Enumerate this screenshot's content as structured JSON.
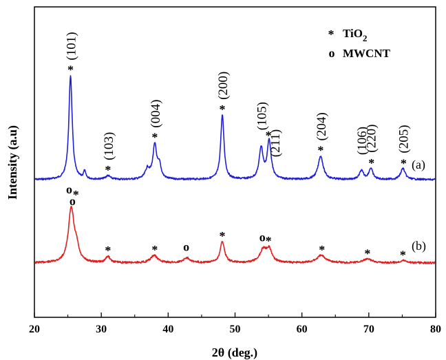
{
  "chart_data": {
    "type": "line",
    "title": "",
    "xlabel": "2θ (deg.)",
    "ylabel": "Intensity (a.u)",
    "xlim": [
      20,
      80
    ],
    "xticks": [
      20,
      30,
      40,
      50,
      60,
      70,
      80
    ],
    "y_ticks_shown": false,
    "grid": false,
    "legend": {
      "placement": "top-right",
      "entries": [
        {
          "symbol": "*",
          "label": "TiO",
          "subscript": "2"
        },
        {
          "symbol": "o",
          "label": "MWCNT"
        }
      ]
    },
    "series": [
      {
        "label": "(a)",
        "color": "#1f1fd6",
        "peaks": [
          {
            "two_theta": 25.4,
            "height": 0.84,
            "width": 0.3
          },
          {
            "two_theta": 27.5,
            "height": 0.06,
            "width": 0.2
          },
          {
            "two_theta": 31.0,
            "height": 0.03,
            "width": 0.4
          },
          {
            "two_theta": 36.9,
            "height": 0.08,
            "width": 0.4
          },
          {
            "two_theta": 38.0,
            "height": 0.27,
            "width": 0.35
          },
          {
            "two_theta": 38.7,
            "height": 0.1,
            "width": 0.3
          },
          {
            "two_theta": 48.1,
            "height": 0.52,
            "width": 0.3
          },
          {
            "two_theta": 53.9,
            "height": 0.25,
            "width": 0.35
          },
          {
            "two_theta": 55.1,
            "height": 0.31,
            "width": 0.35
          },
          {
            "two_theta": 62.8,
            "height": 0.19,
            "width": 0.45
          },
          {
            "two_theta": 68.9,
            "height": 0.07,
            "width": 0.35
          },
          {
            "two_theta": 70.3,
            "height": 0.09,
            "width": 0.35
          },
          {
            "two_theta": 75.1,
            "height": 0.09,
            "width": 0.4
          }
        ]
      },
      {
        "label": "(b)",
        "color": "#e02020",
        "peaks": [
          {
            "two_theta": 25.5,
            "height": 0.44,
            "width": 0.5
          },
          {
            "two_theta": 26.3,
            "height": 0.1,
            "width": 0.4
          },
          {
            "two_theta": 31.0,
            "height": 0.05,
            "width": 0.4
          },
          {
            "two_theta": 37.9,
            "height": 0.06,
            "width": 0.6
          },
          {
            "two_theta": 42.8,
            "height": 0.04,
            "width": 0.6
          },
          {
            "two_theta": 48.1,
            "height": 0.17,
            "width": 0.4
          },
          {
            "two_theta": 54.2,
            "height": 0.1,
            "width": 0.6
          },
          {
            "two_theta": 55.1,
            "height": 0.1,
            "width": 0.5
          },
          {
            "two_theta": 62.9,
            "height": 0.06,
            "width": 0.8
          },
          {
            "two_theta": 69.8,
            "height": 0.03,
            "width": 0.8
          },
          {
            "two_theta": 75.2,
            "height": 0.02,
            "width": 0.6
          }
        ]
      }
    ],
    "peak_labels": [
      {
        "text": "(101)",
        "two_theta": 25.4
      },
      {
        "text": "(103)",
        "two_theta": 31.0
      },
      {
        "text": "(004)",
        "two_theta": 38.0
      },
      {
        "text": "(200)",
        "two_theta": 48.1
      },
      {
        "text": "(105)",
        "two_theta": 53.9
      },
      {
        "text": "(211)",
        "two_theta": 55.9
      },
      {
        "text": "(204)",
        "two_theta": 62.8
      },
      {
        "text": "(106)",
        "two_theta": 68.9
      },
      {
        "text": "(220)",
        "two_theta": 70.3
      },
      {
        "text": "(205)",
        "two_theta": 75.1
      }
    ],
    "markers": [
      {
        "symbol": "*",
        "series": "(a)",
        "two_theta": 25.4
      },
      {
        "symbol": "o",
        "series": "(a)",
        "two_theta": 25.2
      },
      {
        "symbol": "*",
        "series": "(a)",
        "two_theta": 26.2
      },
      {
        "symbol": "*",
        "series": "(a)",
        "two_theta": 31.0
      },
      {
        "symbol": "*",
        "series": "(a)",
        "two_theta": 38.0
      },
      {
        "symbol": "*",
        "series": "(a)",
        "two_theta": 48.1
      },
      {
        "symbol": "*",
        "series": "(a)",
        "two_theta": 55.0
      },
      {
        "symbol": "*",
        "series": "(a)",
        "two_theta": 62.8
      },
      {
        "symbol": "*",
        "series": "(a)",
        "two_theta": 70.4
      },
      {
        "symbol": "*",
        "series": "(a)",
        "two_theta": 75.2
      },
      {
        "symbol": "o",
        "series": "(b)",
        "two_theta": 25.7
      },
      {
        "symbol": "*",
        "series": "(b)",
        "two_theta": 31.0
      },
      {
        "symbol": "*",
        "series": "(b)",
        "two_theta": 38.0
      },
      {
        "symbol": "o",
        "series": "(b)",
        "two_theta": 42.7
      },
      {
        "symbol": "*",
        "series": "(b)",
        "two_theta": 48.1
      },
      {
        "symbol": "o",
        "series": "(b)",
        "two_theta": 54.1
      },
      {
        "symbol": "*",
        "series": "(b)",
        "two_theta": 55.0
      },
      {
        "symbol": "*",
        "series": "(b)",
        "two_theta": 63.0
      },
      {
        "symbol": "*",
        "series": "(b)",
        "two_theta": 69.8
      },
      {
        "symbol": "*",
        "series": "(b)",
        "two_theta": 75.1
      }
    ]
  }
}
